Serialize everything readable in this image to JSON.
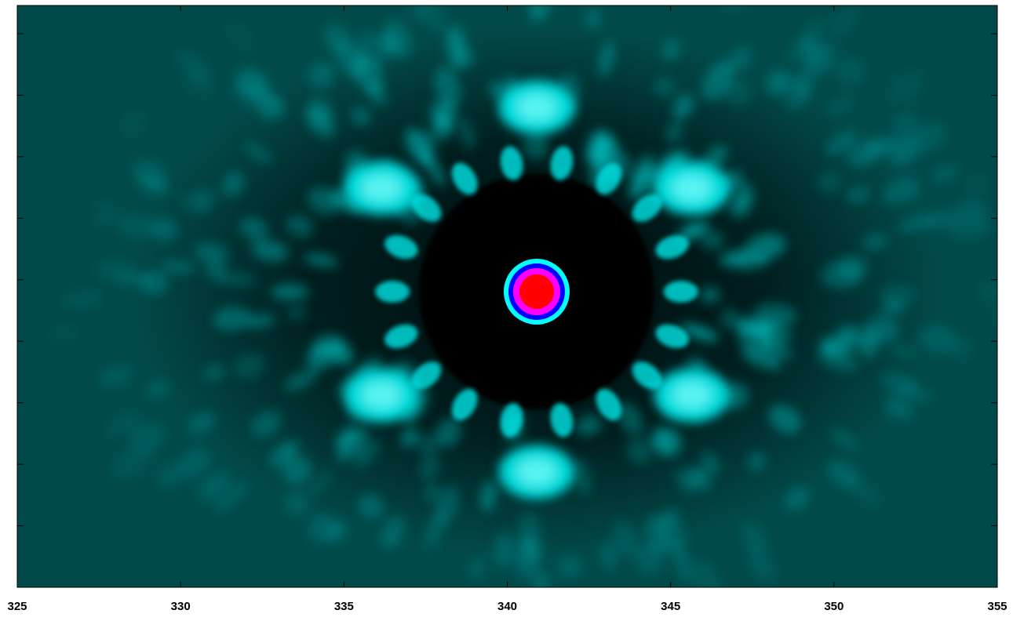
{
  "chart_data": {
    "type": "heatmap",
    "title": "",
    "xlabel": "",
    "ylabel": "",
    "xlim": [
      325,
      355
    ],
    "x_ticks": [
      325,
      330,
      335,
      340,
      345,
      350,
      355
    ],
    "x_tick_labels": [
      "325",
      "330",
      "335",
      "340",
      "345",
      "350",
      "355"
    ],
    "y_tick_count": 10,
    "y_tick_labels": [],
    "grid": false,
    "colormap": [
      "#000000",
      "#024a4a",
      "#00e5e5",
      "#0000ff",
      "#ff00ff",
      "#ff0000"
    ],
    "background_color": "#024a4a",
    "central_peak": {
      "x": 340.9,
      "colors": [
        "#ff0000",
        "#ff00ff",
        "#0000ff",
        "#00ffff"
      ]
    },
    "dark_zone_color": "#000000",
    "speckle_color": "#00e5e5"
  }
}
